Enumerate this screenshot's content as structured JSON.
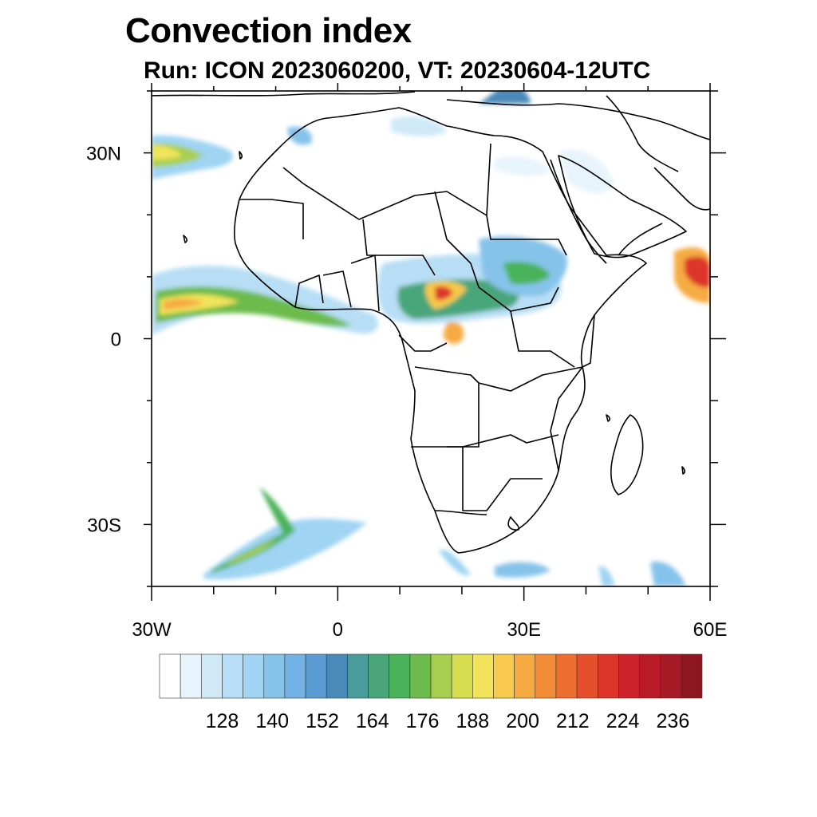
{
  "title": "Convection index",
  "subtitle": "Run: ICON 2023060200,  VT: 20230604-12UTC",
  "map": {
    "lon_range": [
      -30,
      60
    ],
    "lat_range": [
      -40,
      40
    ],
    "x_ticks": [
      {
        "value": -30,
        "label": "30W"
      },
      {
        "value": 0,
        "label": "0"
      },
      {
        "value": 30,
        "label": "30E"
      },
      {
        "value": 60,
        "label": "60E"
      }
    ],
    "y_ticks": [
      {
        "value": 30,
        "label": "30N"
      },
      {
        "value": 0,
        "label": "0"
      },
      {
        "value": -30,
        "label": "30S"
      }
    ],
    "colorbar": {
      "colors": [
        "#ffffff",
        "#e8f4fb",
        "#cfe9f7",
        "#b7def5",
        "#9fd4f3",
        "#86c3ea",
        "#73b2e4",
        "#5b9bd4",
        "#4a8ab8",
        "#4a9b9b",
        "#4aa67a",
        "#4ab35a",
        "#6cbb4c",
        "#a7cf4f",
        "#d8de52",
        "#f2e45a",
        "#f7c94c",
        "#f6ab42",
        "#f28c37",
        "#ee6e2f",
        "#e64f2b",
        "#dd3429",
        "#cd2229",
        "#b91a27",
        "#a51a24",
        "#8e1620"
      ],
      "labels": [
        "128",
        "140",
        "152",
        "164",
        "176",
        "188",
        "200",
        "212",
        "224",
        "236"
      ]
    }
  }
}
